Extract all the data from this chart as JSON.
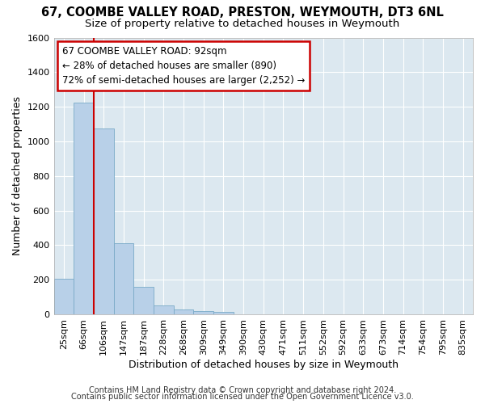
{
  "title1": "67, COOMBE VALLEY ROAD, PRESTON, WEYMOUTH, DT3 6NL",
  "title2": "Size of property relative to detached houses in Weymouth",
  "xlabel": "Distribution of detached houses by size in Weymouth",
  "ylabel": "Number of detached properties",
  "categories": [
    "25sqm",
    "66sqm",
    "106sqm",
    "147sqm",
    "187sqm",
    "228sqm",
    "268sqm",
    "309sqm",
    "349sqm",
    "390sqm",
    "430sqm",
    "471sqm",
    "511sqm",
    "552sqm",
    "592sqm",
    "633sqm",
    "673sqm",
    "714sqm",
    "754sqm",
    "795sqm",
    "835sqm"
  ],
  "values": [
    205,
    1225,
    1075,
    410,
    160,
    50,
    28,
    18,
    13,
    0,
    0,
    0,
    0,
    0,
    0,
    0,
    0,
    0,
    0,
    0,
    0
  ],
  "bar_color": "#b8d0e8",
  "bar_edge_color": "#7aaac8",
  "vline_x_index": 1.5,
  "annotation_line1": "67 COOMBE VALLEY ROAD: 92sqm",
  "annotation_line2": "← 28% of detached houses are smaller (890)",
  "annotation_line3": "72% of semi-detached houses are larger (2,252) →",
  "annotation_box_color": "#ffffff",
  "annotation_box_edge": "#cc0000",
  "vline_color": "#cc0000",
  "ylim": [
    0,
    1600
  ],
  "yticks": [
    0,
    200,
    400,
    600,
    800,
    1000,
    1200,
    1400,
    1600
  ],
  "bg_color": "#dce8f0",
  "grid_color": "#ffffff",
  "footer1": "Contains HM Land Registry data © Crown copyright and database right 2024.",
  "footer2": "Contains public sector information licensed under the Open Government Licence v3.0.",
  "title1_fontsize": 10.5,
  "title2_fontsize": 9.5,
  "xlabel_fontsize": 9,
  "ylabel_fontsize": 9,
  "tick_fontsize": 8,
  "footer_fontsize": 7
}
